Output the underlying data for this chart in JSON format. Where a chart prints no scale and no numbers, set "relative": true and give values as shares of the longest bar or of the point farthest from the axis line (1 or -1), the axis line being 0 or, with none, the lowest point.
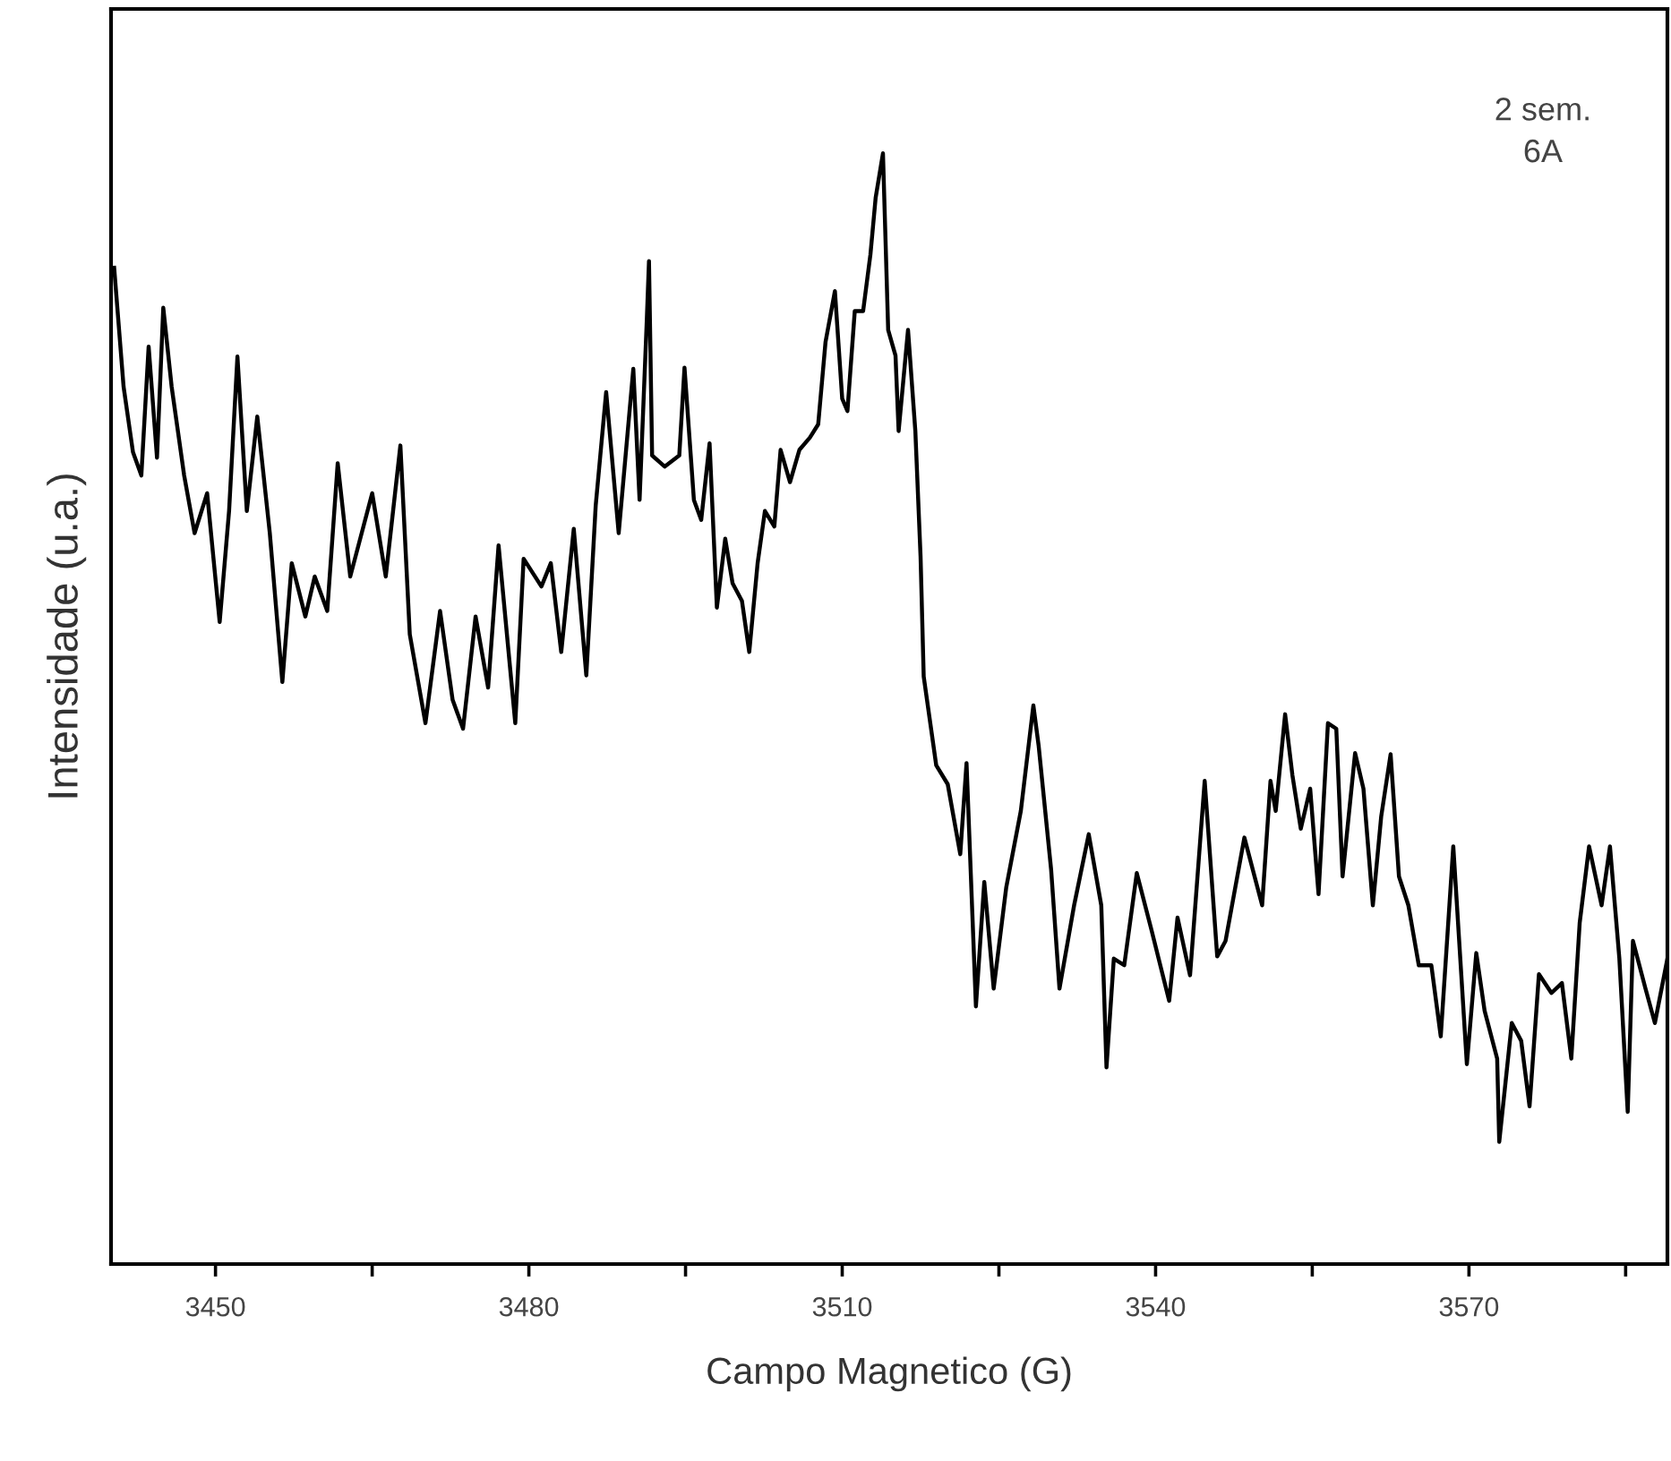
{
  "chart_data": {
    "type": "line",
    "xlabel": "Campo Magnetico (G)",
    "ylabel": "Intensidade (u.a.)",
    "relative": true,
    "annotations": [
      "2 sem.\n6A"
    ],
    "xlim": [
      3440,
      3589
    ],
    "xticks": [
      3450,
      {
        "value": 3465,
        "label": null
      },
      3480,
      {
        "value": 3495,
        "label": null
      },
      3510,
      {
        "value": 3525,
        "label": null
      },
      3540,
      {
        "value": 3555,
        "label": null
      },
      3570,
      {
        "value": 3585,
        "label": null
      }
    ],
    "grid": false,
    "legend": false,
    "marker": "none",
    "line_style": "solid",
    "series": [
      {
        "color": "#000000",
        "x": [
          3440.3,
          3441.2,
          3442.1,
          3442.9,
          3443.6,
          3444.4,
          3445.0,
          3445.8,
          3447.0,
          3448.0,
          3449.2,
          3450.4,
          3451.3,
          3452.1,
          3453.0,
          3454.0,
          3455.2,
          3456.4,
          3457.3,
          3458.6,
          3459.5,
          3460.7,
          3461.7,
          3462.9,
          3465.0,
          3466.3,
          3467.7,
          3468.6,
          3470.1,
          3471.5,
          3472.7,
          3473.7,
          3474.9,
          3476.1,
          3477.1,
          3478.7,
          3479.5,
          3481.2,
          3482.1,
          3483.1,
          3484.3,
          3485.5,
          3486.4,
          3487.4,
          3488.6,
          3490.0,
          3490.6,
          3491.3,
          3491.5,
          3491.8,
          3493.0,
          3494.4,
          3494.9,
          3495.8,
          3496.5,
          3497.3,
          3498.0,
          3498.8,
          3499.5,
          3500.4,
          3501.1,
          3501.9,
          3502.6,
          3503.5,
          3504.1,
          3505.0,
          3505.9,
          3506.9,
          3507.7,
          3508.4,
          3509.3,
          3510.0,
          3510.5,
          3511.2,
          3512.0,
          3512.7,
          3513.2,
          3513.9,
          3514.4,
          3515.1,
          3515.4,
          3516.3,
          3517.0,
          3517.5,
          3517.8,
          3519.0,
          3520.1,
          3521.3,
          3521.9,
          3522.8,
          3523.6,
          3524.5,
          3525.7,
          3527.1,
          3528.3,
          3528.8,
          3530.0,
          3530.8,
          3532.2,
          3533.6,
          3534.8,
          3535.3,
          3536.0,
          3537.0,
          3538.2,
          3539.6,
          3541.3,
          3542.1,
          3543.3,
          3544.7,
          3545.9,
          3546.7,
          3548.5,
          3550.2,
          3551.0,
          3551.5,
          3552.4,
          3553.1,
          3553.9,
          3554.8,
          3555.6,
          3556.5,
          3557.3,
          3557.9,
          3559.1,
          3559.9,
          3560.8,
          3561.6,
          3562.5,
          3563.3,
          3564.2,
          3565.2,
          3566.4,
          3567.3,
          3568.5,
          3569.8,
          3570.7,
          3571.5,
          3572.7,
          3572.9,
          3574.1,
          3575.0,
          3575.8,
          3576.7,
          3577.9,
          3578.9,
          3579.8,
          3580.6,
          3581.5,
          3582.7,
          3583.5,
          3584.4,
          3585.2,
          3585.7,
          3586.9,
          3587.8,
          3589.0
        ],
        "values": [
          0.897,
          0.79,
          0.731,
          0.71,
          0.826,
          0.726,
          0.861,
          0.79,
          0.71,
          0.658,
          0.694,
          0.578,
          0.678,
          0.817,
          0.678,
          0.763,
          0.658,
          0.524,
          0.631,
          0.583,
          0.619,
          0.588,
          0.721,
          0.619,
          0.694,
          0.619,
          0.737,
          0.567,
          0.487,
          0.588,
          0.508,
          0.482,
          0.583,
          0.519,
          0.647,
          0.487,
          0.635,
          0.61,
          0.631,
          0.551,
          0.662,
          0.53,
          0.683,
          0.785,
          0.658,
          0.806,
          0.688,
          0.852,
          0.903,
          0.728,
          0.718,
          0.728,
          0.807,
          0.688,
          0.67,
          0.739,
          0.591,
          0.653,
          0.613,
          0.597,
          0.551,
          0.631,
          0.678,
          0.664,
          0.733,
          0.704,
          0.733,
          0.744,
          0.756,
          0.83,
          0.876,
          0.779,
          0.768,
          0.858,
          0.858,
          0.909,
          0.96,
          1.0,
          0.841,
          0.818,
          0.75,
          0.841,
          0.75,
          0.637,
          0.529,
          0.449,
          0.432,
          0.369,
          0.451,
          0.232,
          0.344,
          0.248,
          0.339,
          0.408,
          0.503,
          0.467,
          0.355,
          0.248,
          0.323,
          0.387,
          0.323,
          0.177,
          0.275,
          0.269,
          0.352,
          0.301,
          0.237,
          0.312,
          0.26,
          0.435,
          0.277,
          0.291,
          0.384,
          0.323,
          0.435,
          0.408,
          0.495,
          0.44,
          0.392,
          0.428,
          0.333,
          0.487,
          0.482,
          0.349,
          0.46,
          0.428,
          0.323,
          0.403,
          0.459,
          0.349,
          0.323,
          0.269,
          0.269,
          0.205,
          0.376,
          0.18,
          0.28,
          0.228,
          0.185,
          0.11,
          0.217,
          0.201,
          0.142,
          0.261,
          0.244,
          0.253,
          0.185,
          0.307,
          0.376,
          0.323,
          0.376,
          0.275,
          0.137,
          0.291,
          0.248,
          0.217,
          0.275
        ]
      }
    ]
  }
}
